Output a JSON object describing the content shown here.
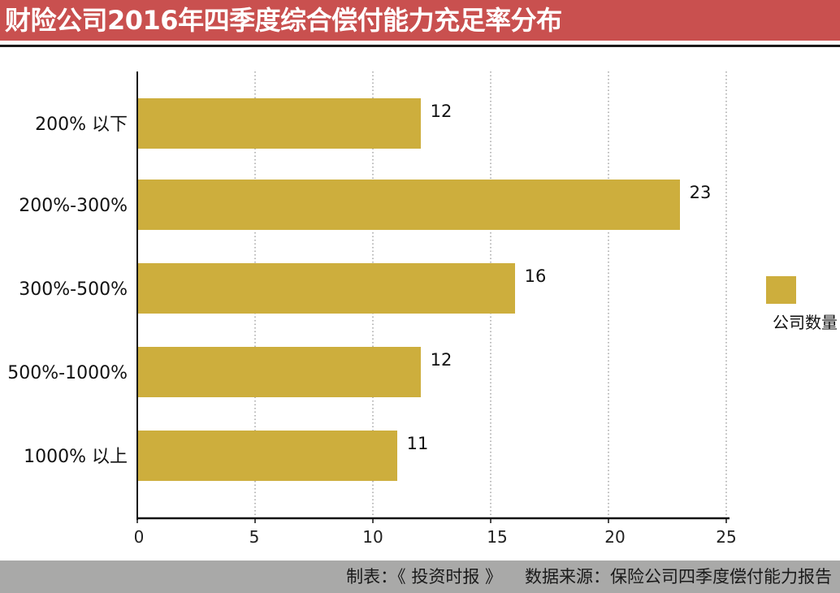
{
  "title": "财险公司2016年四季度综合偿付能力充足率分布",
  "footer": {
    "maker": "制表：《 投资时报 》",
    "source": "数据来源：保险公司四季度偿付能力报告"
  },
  "colors": {
    "title_bar": "#c9504f",
    "bar": "#cdae3d",
    "footer_bar": "#a9a9a8"
  },
  "chart_data": {
    "type": "bar",
    "orientation": "horizontal",
    "categories": [
      "200% 以下",
      "200%-300%",
      "300%-500%",
      "500%-1000%",
      "1000% 以上"
    ],
    "series": [
      {
        "name": "公司数量",
        "values": [
          12,
          23,
          16,
          12,
          11
        ]
      }
    ],
    "xlim": [
      0,
      25
    ],
    "x_ticks": [
      0,
      5,
      10,
      15,
      20,
      25
    ],
    "grid": "vertical dotted",
    "legend_position": "right"
  }
}
